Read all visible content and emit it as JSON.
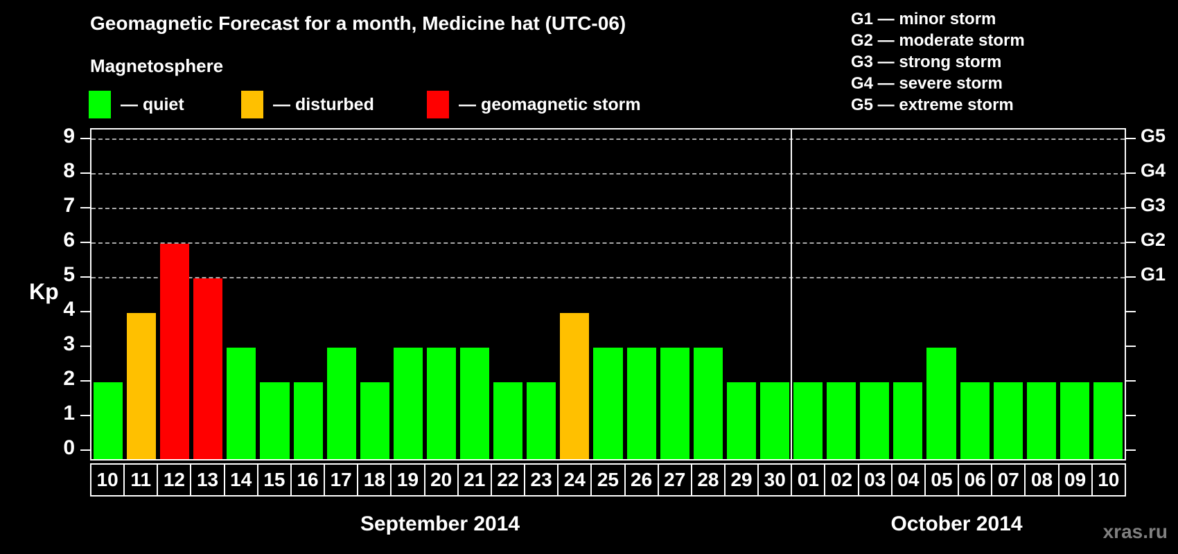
{
  "title": "Geomagnetic Forecast for a month, Medicine hat (UTC-06)",
  "legend": {
    "heading": "Magnetosphere",
    "items": [
      {
        "name": "quiet",
        "label": "— quiet",
        "color": "#00ff00"
      },
      {
        "name": "disturbed",
        "label": "— disturbed",
        "color": "#ffc000"
      },
      {
        "name": "storm",
        "label": "— geomagnetic storm",
        "color": "#ff0000"
      }
    ]
  },
  "storm_scale_legend": [
    "G1 — minor storm",
    "G2 — moderate storm",
    "G3 — strong storm",
    "G4 — severe storm",
    "G5 — extreme storm"
  ],
  "axes": {
    "y_label": "Kp",
    "y_ticks": [
      0,
      1,
      2,
      3,
      4,
      5,
      6,
      7,
      8,
      9
    ],
    "g_ticks": [
      {
        "label": "G1",
        "kp": 5
      },
      {
        "label": "G2",
        "kp": 6
      },
      {
        "label": "G3",
        "kp": 7
      },
      {
        "label": "G4",
        "kp": 8
      },
      {
        "label": "G5",
        "kp": 9
      }
    ]
  },
  "months": [
    {
      "label": "September 2014",
      "days": 21
    },
    {
      "label": "October 2014",
      "days": 10
    }
  ],
  "watermark": "xras.ru",
  "colors": {
    "background": "#000000",
    "text": "#ffffff",
    "quiet": "#00ff00",
    "disturbed": "#ffc000",
    "storm": "#ff0000",
    "gridline": "#aaaaaa",
    "separator": "#ffffff",
    "watermark": "#808080"
  },
  "chart_data": {
    "type": "bar",
    "title": "Geomagnetic Forecast for a month, Medicine hat (UTC-06)",
    "xlabel": "",
    "ylabel": "Kp",
    "ylim": [
      0,
      9
    ],
    "grid": "dashed horizontal at Kp 5-9 only",
    "legend_position": "top-left",
    "gridlines_at": [
      5,
      6,
      7,
      8,
      9
    ],
    "month_boundary_after_index": 20,
    "categories": [
      "10",
      "11",
      "12",
      "13",
      "14",
      "15",
      "16",
      "17",
      "18",
      "19",
      "20",
      "21",
      "22",
      "23",
      "24",
      "25",
      "26",
      "27",
      "28",
      "29",
      "30",
      "01",
      "02",
      "03",
      "04",
      "05",
      "06",
      "07",
      "08",
      "09",
      "10"
    ],
    "values": [
      2,
      4,
      6,
      5,
      3,
      2,
      2,
      3,
      2,
      3,
      3,
      3,
      2,
      2,
      4,
      3,
      3,
      3,
      3,
      2,
      2,
      2,
      2,
      2,
      2,
      3,
      2,
      2,
      2,
      2,
      2
    ],
    "statuses": [
      "quiet",
      "disturbed",
      "storm",
      "storm",
      "quiet",
      "quiet",
      "quiet",
      "quiet",
      "quiet",
      "quiet",
      "quiet",
      "quiet",
      "quiet",
      "quiet",
      "disturbed",
      "quiet",
      "quiet",
      "quiet",
      "quiet",
      "quiet",
      "quiet",
      "quiet",
      "quiet",
      "quiet",
      "quiet",
      "quiet",
      "quiet",
      "quiet",
      "quiet",
      "quiet",
      "quiet"
    ]
  }
}
